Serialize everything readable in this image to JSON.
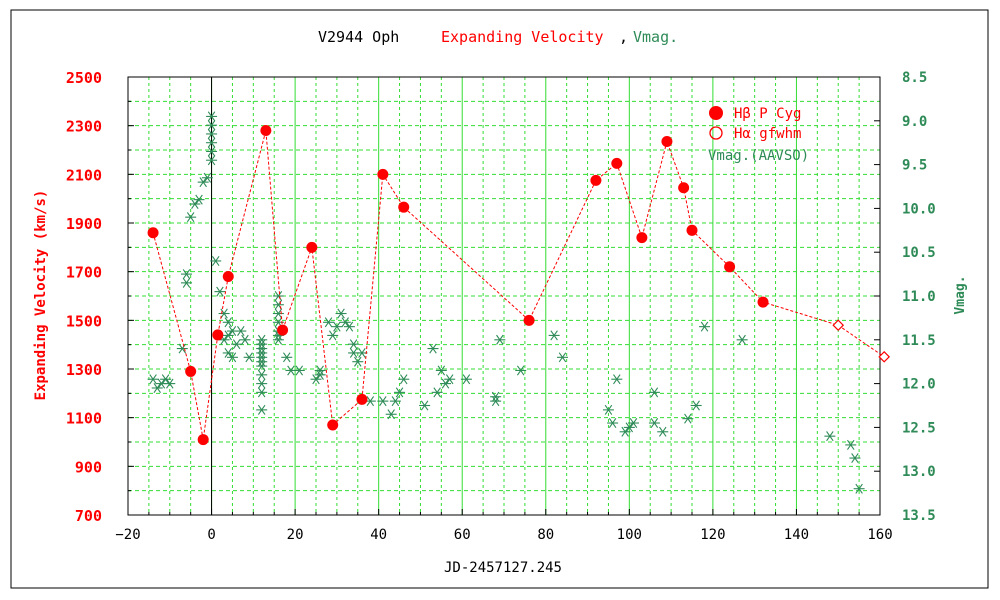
{
  "title": {
    "object": "V2944 Oph",
    "velocity": "Expanding Velocity",
    "comma": ",",
    "vmag": "Vmag."
  },
  "chart_data": {
    "type": "scatter",
    "xlabel": "JD-2457127.245",
    "ylabel_left": "Expanding Velocity (km/s)",
    "ylabel_right": "Vmag.",
    "xlim": [
      -20,
      160
    ],
    "ylim_left": [
      700,
      2500
    ],
    "ylim_right": [
      8.5,
      13.5
    ],
    "right_axis_inverted": true,
    "grid": true,
    "legend_position": "top-right",
    "x_ticks": [
      "−20",
      "0",
      "20",
      "40",
      "60",
      "80",
      "100",
      "120",
      "140",
      "160"
    ],
    "x_tick_values": [
      -20,
      0,
      20,
      40,
      60,
      80,
      100,
      120,
      140,
      160
    ],
    "y_left_ticks": [
      "700",
      "900",
      "1100",
      "1300",
      "1500",
      "1700",
      "1900",
      "2100",
      "2300",
      "2500"
    ],
    "y_left_tick_values": [
      700,
      900,
      1100,
      1300,
      1500,
      1700,
      1900,
      2100,
      2300,
      2500
    ],
    "y_right_ticks": [
      "8.5",
      "9.0",
      "9.5",
      "10.0",
      "10.5",
      "11.0",
      "11.5",
      "12.0",
      "12.5",
      "13.0",
      "13.5"
    ],
    "y_right_tick_values": [
      8.5,
      9.0,
      9.5,
      10.0,
      10.5,
      11.0,
      11.5,
      12.0,
      12.5,
      13.0,
      13.5
    ],
    "colors": {
      "velocity": "#ff0000",
      "vmag": "#2e8b57",
      "grid": "#33dd33",
      "axis": "#000000"
    },
    "series": [
      {
        "name": "Hβ P Cyg",
        "legend_symbol": "filled-circle",
        "axis": "left",
        "x": [
          -14,
          -5,
          -2,
          1.5,
          4,
          13,
          17,
          24,
          29,
          36,
          41,
          46,
          76,
          92,
          97,
          103,
          109,
          113,
          115,
          124,
          132
        ],
        "y": [
          1860,
          1290,
          1010,
          1440,
          1680,
          2280,
          1460,
          1800,
          1070,
          1175,
          2100,
          1965,
          1500,
          2075,
          2145,
          1840,
          2235,
          2045,
          1870,
          1720,
          1575
        ]
      },
      {
        "name": "Hα gfwhm",
        "legend_symbol": "open-diamond",
        "axis": "left",
        "x": [
          150,
          161
        ],
        "y": [
          1480,
          1350
        ]
      },
      {
        "name": "Vmag.(AAVSO)",
        "legend_symbol": "asterisk",
        "axis": "right",
        "x": [
          -14,
          -13,
          -12,
          -11,
          -10,
          -7,
          -6,
          -6,
          -5,
          -4,
          -3,
          -2,
          -1,
          0,
          0,
          0,
          0,
          0,
          0,
          1,
          2,
          3,
          3,
          4,
          4,
          4,
          5,
          5,
          6,
          7,
          8,
          9,
          12,
          12,
          12,
          12,
          12,
          12,
          12,
          12,
          12,
          12,
          12,
          16,
          16,
          16,
          16,
          16,
          16,
          16,
          18,
          19,
          21,
          25,
          26,
          26,
          28,
          29,
          30,
          31,
          32,
          33,
          34,
          34,
          35,
          36,
          38,
          41,
          43,
          44,
          45,
          46,
          51,
          53,
          54,
          55,
          56,
          57,
          61,
          68,
          68,
          69,
          74,
          82,
          84,
          95,
          96,
          97,
          99,
          100,
          101,
          106,
          106,
          108,
          114,
          116,
          118,
          127,
          148,
          153,
          154,
          155
        ],
        "y": [
          11.95,
          12.05,
          12.0,
          11.95,
          12.0,
          11.6,
          10.75,
          10.85,
          10.1,
          9.95,
          9.9,
          9.7,
          9.65,
          9.45,
          9.35,
          9.25,
          9.15,
          9.05,
          8.95,
          10.6,
          10.95,
          11.2,
          11.5,
          11.3,
          11.45,
          11.65,
          11.4,
          11.7,
          11.55,
          11.4,
          11.5,
          11.7,
          11.5,
          11.6,
          11.7,
          11.8,
          11.9,
          12.0,
          12.1,
          11.55,
          11.65,
          11.75,
          12.3,
          11.0,
          11.1,
          11.2,
          11.3,
          11.4,
          11.5,
          11.45,
          11.7,
          11.85,
          11.85,
          11.95,
          11.85,
          11.9,
          11.3,
          11.45,
          11.35,
          11.2,
          11.3,
          11.35,
          11.55,
          11.65,
          11.75,
          11.65,
          12.2,
          12.2,
          12.35,
          12.2,
          12.1,
          11.95,
          12.25,
          11.6,
          12.1,
          11.85,
          12.0,
          11.95,
          11.95,
          12.15,
          12.2,
          11.5,
          11.85,
          11.45,
          11.7,
          12.3,
          12.45,
          11.95,
          12.55,
          12.5,
          12.45,
          12.45,
          12.1,
          12.55,
          12.4,
          12.25,
          11.35,
          11.5,
          12.6,
          12.7,
          12.85,
          13.2
        ]
      }
    ]
  }
}
